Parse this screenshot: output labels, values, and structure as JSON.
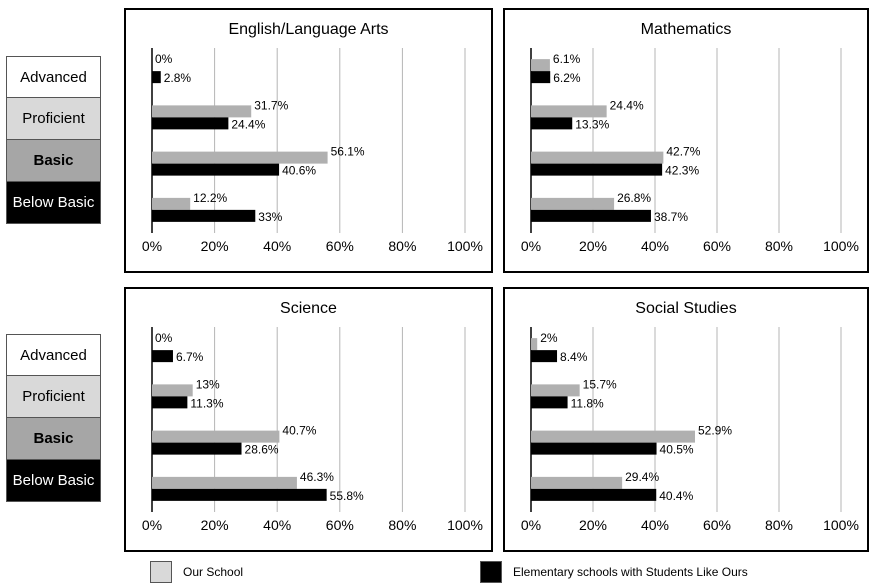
{
  "categories": [
    "Advanced",
    "Proficient",
    "Basic",
    "Below Basic"
  ],
  "colors": {
    "our_school": "#b0b0b0",
    "similar_schools": "#000000",
    "grid": "#b5b5b5"
  },
  "legend": {
    "our_school": "Our School",
    "similar_schools": "Elementary schools with Students Like Ours"
  },
  "chart_data": [
    {
      "type": "bar",
      "title": "English/Language Arts",
      "categories": [
        "Advanced",
        "Proficient",
        "Basic",
        "Below Basic"
      ],
      "series": [
        {
          "name": "Our School",
          "values": [
            0,
            31.7,
            56.1,
            12.2
          ],
          "labels": [
            "0%",
            "31.7%",
            "56.1%",
            "12.2%"
          ]
        },
        {
          "name": "Elementary schools with Students Like Ours",
          "values": [
            2.8,
            24.4,
            40.6,
            33
          ],
          "labels": [
            "2.8%",
            "24.4%",
            "40.6%",
            "33%"
          ]
        }
      ],
      "xlim": [
        0,
        100
      ],
      "xticks": [
        "0%",
        "20%",
        "40%",
        "60%",
        "80%",
        "100%"
      ],
      "grid": true
    },
    {
      "type": "bar",
      "title": "Mathematics",
      "categories": [
        "Advanced",
        "Proficient",
        "Basic",
        "Below Basic"
      ],
      "series": [
        {
          "name": "Our School",
          "values": [
            6.1,
            24.4,
            42.7,
            26.8
          ],
          "labels": [
            "6.1%",
            "24.4%",
            "42.7%",
            "26.8%"
          ]
        },
        {
          "name": "Elementary schools with Students Like Ours",
          "values": [
            6.2,
            13.3,
            42.3,
            38.7
          ],
          "labels": [
            "6.2%",
            "13.3%",
            "42.3%",
            "38.7%"
          ]
        }
      ],
      "xlim": [
        0,
        100
      ],
      "xticks": [
        "0%",
        "20%",
        "40%",
        "60%",
        "80%",
        "100%"
      ],
      "grid": true
    },
    {
      "type": "bar",
      "title": "Science",
      "categories": [
        "Advanced",
        "Proficient",
        "Basic",
        "Below Basic"
      ],
      "series": [
        {
          "name": "Our School",
          "values": [
            0,
            13,
            40.7,
            46.3
          ],
          "labels": [
            "0%",
            "13%",
            "40.7%",
            "46.3%"
          ]
        },
        {
          "name": "Elementary schools with Students Like Ours",
          "values": [
            6.7,
            11.3,
            28.6,
            55.8
          ],
          "labels": [
            "6.7%",
            "11.3%",
            "28.6%",
            "55.8%"
          ]
        }
      ],
      "xlim": [
        0,
        100
      ],
      "xticks": [
        "0%",
        "20%",
        "40%",
        "60%",
        "80%",
        "100%"
      ],
      "grid": true
    },
    {
      "type": "bar",
      "title": "Social Studies",
      "categories": [
        "Advanced",
        "Proficient",
        "Basic",
        "Below Basic"
      ],
      "series": [
        {
          "name": "Our School",
          "values": [
            2,
            15.7,
            52.9,
            29.4
          ],
          "labels": [
            "2%",
            "15.7%",
            "52.9%",
            "29.4%"
          ]
        },
        {
          "name": "Elementary schools with Students Like Ours",
          "values": [
            8.4,
            11.8,
            40.5,
            40.4
          ],
          "labels": [
            "8.4%",
            "11.8%",
            "40.5%",
            "40.4%"
          ]
        }
      ],
      "xlim": [
        0,
        100
      ],
      "xticks": [
        "0%",
        "20%",
        "40%",
        "60%",
        "80%",
        "100%"
      ],
      "grid": true
    }
  ]
}
